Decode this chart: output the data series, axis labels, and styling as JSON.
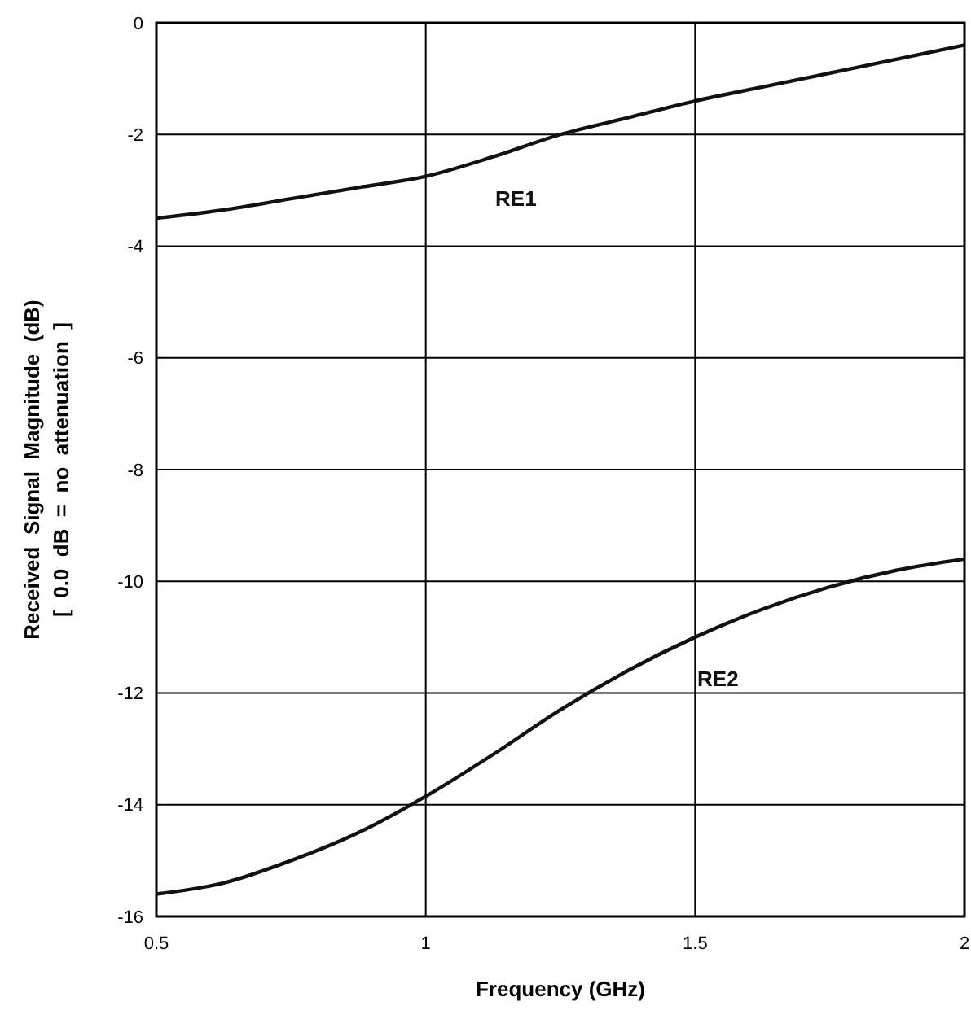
{
  "chart_data": {
    "type": "line",
    "xlabel": "Frequency  (GHz)",
    "ylabel": "Received  Signal  Magnitude  (dB)\n[  0.0  dB  =  no  attenuation  ]",
    "xlim": [
      0.5,
      2
    ],
    "ylim": [
      -16,
      0
    ],
    "xticks": [
      0.5,
      1,
      1.5,
      2
    ],
    "yticks": [
      0,
      -2,
      -4,
      -6,
      -8,
      -10,
      -12,
      -14,
      -16
    ],
    "grid": true,
    "marker": "none",
    "line_style": "solid",
    "x": [
      0.5,
      0.625,
      0.75,
      0.875,
      1,
      1.125,
      1.25,
      1.375,
      1.5,
      1.625,
      1.75,
      1.875,
      2
    ],
    "series": [
      {
        "name": "RE1",
        "color": "#111111",
        "values": [
          -3.5,
          -3.35,
          -3.15,
          -2.95,
          -2.75,
          -2.4,
          -2.0,
          -1.7,
          -1.4,
          -1.15,
          -0.9,
          -0.65,
          -0.4
        ]
      },
      {
        "name": "RE2",
        "color": "#111111",
        "values": [
          -15.6,
          -15.4,
          -15.0,
          -14.5,
          -13.85,
          -13.1,
          -12.3,
          -11.6,
          -11.0,
          -10.5,
          -10.1,
          -9.8,
          -9.6
        ]
      }
    ]
  }
}
